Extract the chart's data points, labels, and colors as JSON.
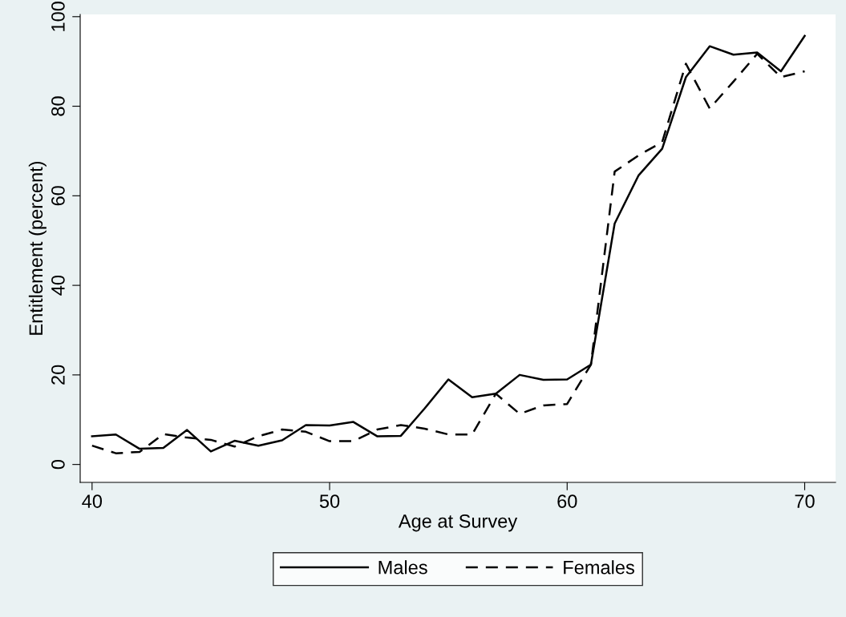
{
  "chart_data": {
    "type": "line",
    "xlabel": "Age at Survey",
    "ylabel": "Entitlement (percent)",
    "x": [
      40,
      41,
      42,
      43,
      44,
      45,
      46,
      47,
      48,
      49,
      50,
      51,
      52,
      53,
      54,
      55,
      56,
      57,
      58,
      59,
      60,
      61,
      62,
      63,
      64,
      65,
      66,
      67,
      68,
      69,
      70
    ],
    "series": [
      {
        "name": "Males",
        "color": "#000000",
        "line_style": "solid",
        "values": [
          6.3,
          6.7,
          3.5,
          3.7,
          7.7,
          2.9,
          5.3,
          4.2,
          5.4,
          8.8,
          8.7,
          9.5,
          6.3,
          6.4,
          12.5,
          19,
          15,
          15.8,
          20,
          18.9,
          19,
          22.3,
          53.8,
          64.5,
          70.5,
          86.5,
          93.4,
          91.5,
          92,
          87.8,
          95.7
        ]
      },
      {
        "name": "Females",
        "color": "#000000",
        "line_style": "dashed",
        "values": [
          4.2,
          2.5,
          2.8,
          6.8,
          6,
          5.5,
          4,
          6.3,
          7.8,
          7.3,
          5.2,
          5.2,
          7.8,
          8.8,
          8,
          6.7,
          6.7,
          15.8,
          11.3,
          13.2,
          13.5,
          22.3,
          65.4,
          69,
          72,
          89.5,
          79.5,
          85.5,
          91.7,
          86.5,
          87.8
        ]
      }
    ],
    "xlim": [
      39.5,
      71.3
    ],
    "xticks": [
      40,
      50,
      60,
      70
    ],
    "ylim": [
      -4,
      100.5
    ],
    "yticks": [
      0,
      20,
      40,
      60,
      80,
      100
    ],
    "grid": false,
    "legend": "bottom",
    "marker": "none"
  }
}
